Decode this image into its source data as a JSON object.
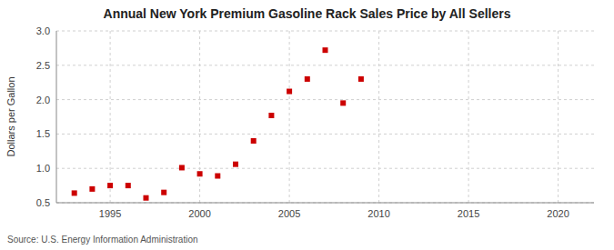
{
  "chart_data": {
    "type": "scatter",
    "title": "Annual New York Premium Gasoline Rack Sales Price by All Sellers",
    "y_label": "Dollars per Gallon",
    "source": "Source: U.S. Energy Information Administration",
    "x": [
      1993,
      1994,
      1995,
      1996,
      1997,
      1998,
      1999,
      2000,
      2001,
      2002,
      2003,
      2004,
      2005,
      2006,
      2007,
      2008,
      2009,
      2010
    ],
    "values": [
      0.64,
      0.7,
      0.75,
      0.75,
      0.57,
      0.65,
      1.01,
      0.92,
      0.89,
      1.06,
      1.4,
      1.77,
      2.12,
      2.3,
      2.72,
      1.95,
      2.3,
      null
    ],
    "color": "#cc0000",
    "marker": "square",
    "xlim": [
      1992,
      2022
    ],
    "ylim": [
      0.5,
      3.0
    ],
    "xticks": [
      1995,
      2000,
      2005,
      2010,
      2015,
      2020
    ],
    "yticks": [
      0.5,
      {
        "value": 1.0,
        "label": "1.0"
      },
      1.5,
      {
        "value": 2.0,
        "label": "2.0"
      },
      2.5,
      {
        "value": 3.0,
        "label": "3.0"
      }
    ],
    "grid": true
  }
}
